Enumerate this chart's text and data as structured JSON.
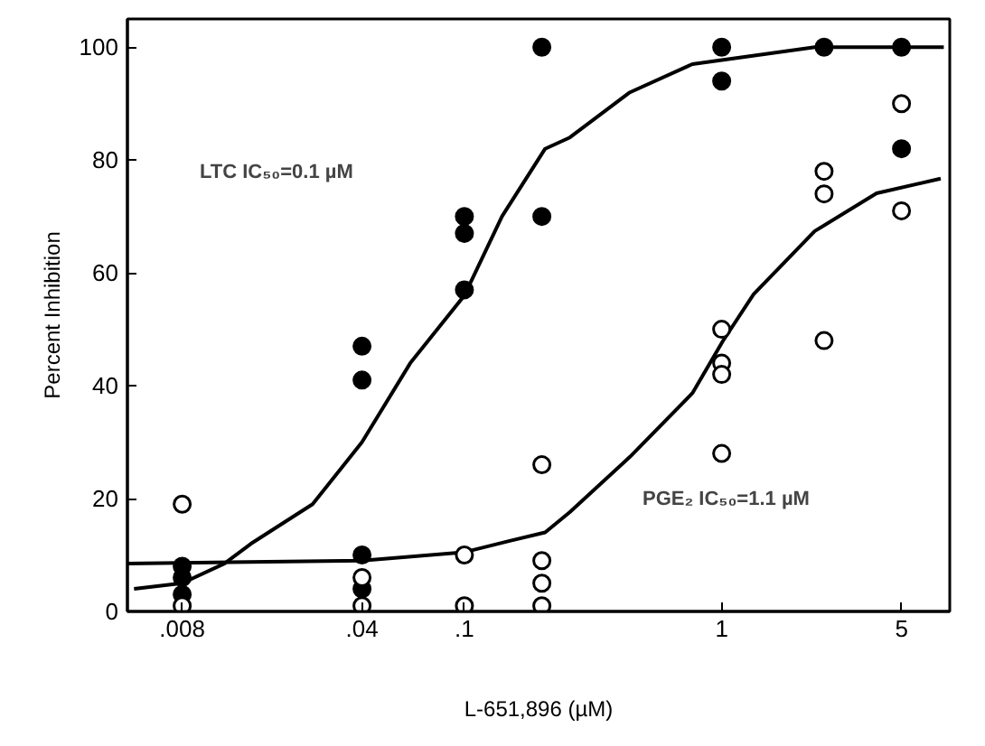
{
  "chart_data": {
    "type": "scatter",
    "xlabel": "L-651,896 (µM)",
    "ylabel": "Percent Inhibition",
    "log": "x",
    "grid": false,
    "marker": "circle",
    "xlim": [
      0.0049,
      7.7
    ],
    "ylim": [
      0,
      105
    ],
    "xticks": [
      {
        "value": 0.008,
        "label": ".008"
      },
      {
        "value": 0.04,
        "label": ".04"
      },
      {
        "value": 0.1,
        "label": ".1"
      },
      1,
      5
    ],
    "yticks": [
      0,
      20,
      40,
      60,
      80,
      100
    ],
    "annotations": [
      "LTC IC₅₀=0.1 µM",
      "PGE₂ IC₅₀=1.1 µM"
    ],
    "series": [
      {
        "type": "line",
        "marker": "none",
        "color": "#000000",
        "x": [
          0.0052,
          0.008,
          0.0117,
          0.0148,
          0.0257,
          0.04,
          0.0616,
          0.1,
          0.14,
          0.206,
          0.257,
          0.44,
          0.77,
          2.3,
          7.3
        ],
        "values": [
          4,
          5,
          8.5,
          12,
          19,
          30,
          44,
          56,
          70,
          82,
          84,
          92,
          97,
          100,
          100
        ]
      },
      {
        "type": "line",
        "marker": "none",
        "color": "#000000",
        "x": [
          0.0049,
          0.04,
          0.1,
          0.15,
          0.206,
          0.257,
          0.44,
          0.77,
          1.01,
          1.33,
          2.3,
          4.0,
          7.1
        ],
        "values": [
          8.5,
          9,
          10.5,
          12.5,
          14,
          17.6,
          27.4,
          38.7,
          47.9,
          56.2,
          67.4,
          74.1,
          76.7
        ]
      },
      {
        "color": "#000000",
        "x": [
          0.008,
          0.008,
          0.008,
          0.04,
          0.04,
          0.04,
          0.04,
          0.1,
          0.1,
          0.1,
          0.2,
          0.2,
          1,
          1,
          2.5,
          5,
          5
        ],
        "values": [
          8,
          6,
          3,
          47,
          41,
          10,
          4,
          70,
          67,
          57,
          100,
          70,
          100,
          94,
          100,
          100,
          82
        ]
      },
      {
        "color": "#ffffff",
        "x": [
          0.008,
          0.008,
          0.04,
          0.04,
          0.1,
          0.1,
          0.2,
          0.2,
          0.2,
          0.2,
          1,
          1,
          1,
          1,
          2.5,
          2.5,
          2.5,
          5,
          5
        ],
        "values": [
          19,
          1,
          6,
          1,
          10,
          1,
          26,
          9,
          5,
          1,
          50,
          44,
          42,
          28,
          78,
          74,
          48,
          90,
          71
        ]
      }
    ]
  }
}
